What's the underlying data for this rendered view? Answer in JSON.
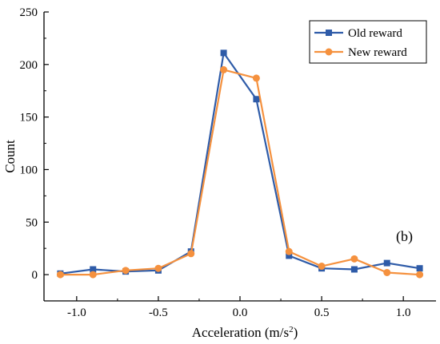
{
  "chart_data": {
    "type": "line",
    "xlabel": "Acceleration (m/s",
    "xlabel_sup": "2",
    "xlabel_end": ")",
    "ylabel": "Count",
    "xlim": [
      -1.2,
      1.2
    ],
    "ylim": [
      -25,
      250
    ],
    "x": [
      -1.1,
      -0.9,
      -0.7,
      -0.5,
      -0.3,
      -0.1,
      0.1,
      0.3,
      0.5,
      0.7,
      0.9,
      1.1
    ],
    "x_ticks": [
      -1.0,
      -0.5,
      0.0,
      0.5,
      1.0
    ],
    "x_tick_labels": [
      "-1.0",
      "-0.5",
      "0.0",
      "0.5",
      "1.0"
    ],
    "y_ticks": [
      0,
      50,
      100,
      150,
      200,
      250
    ],
    "y_tick_labels": [
      "0",
      "50",
      "100",
      "150",
      "200",
      "250"
    ],
    "series": [
      {
        "name": "Old reward",
        "color": "#2e5ba8",
        "marker": "square",
        "values": [
          1,
          5,
          3,
          4,
          22,
          211,
          167,
          18,
          6,
          5,
          11,
          6
        ]
      },
      {
        "name": "New reward",
        "color": "#f5913e",
        "marker": "circle",
        "values": [
          0,
          0,
          4,
          6,
          20,
          195,
          187,
          22,
          8,
          15,
          2,
          0
        ]
      }
    ],
    "legend_position": "top-right",
    "annotation": "(b)",
    "grid": false
  }
}
